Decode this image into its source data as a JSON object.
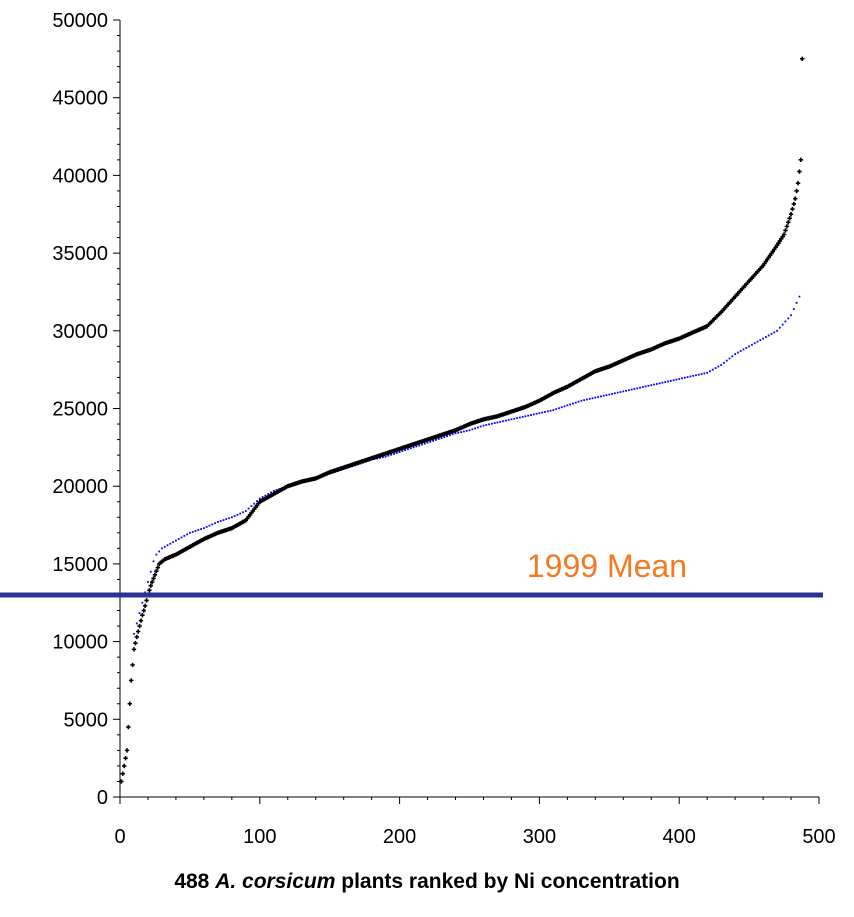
{
  "chart_data": {
    "type": "scatter",
    "xlim": [
      0,
      500
    ],
    "ylim": [
      0,
      50000
    ],
    "x_ticks": [
      "0",
      "100",
      "200",
      "300",
      "400",
      "500"
    ],
    "y_ticks": [
      "0",
      "5000",
      "10000",
      "15000",
      "20000",
      "25000",
      "30000",
      "35000",
      "40000",
      "45000",
      "50000"
    ],
    "xlabel": {
      "prefix": "488 ",
      "species": "A. corsicum",
      "suffix": " plants ranked by Ni concentration"
    },
    "grid": false,
    "series": [
      {
        "color": "#000000",
        "marker": "plus",
        "points": [
          [
            1,
            1000
          ],
          [
            3,
            2000
          ],
          [
            5,
            3000
          ],
          [
            6,
            4500
          ],
          [
            7,
            6000
          ],
          [
            8,
            7500
          ],
          [
            9,
            8500
          ],
          [
            10,
            9500
          ],
          [
            12,
            10300
          ],
          [
            14,
            11000
          ],
          [
            16,
            11700
          ],
          [
            18,
            12300
          ],
          [
            20,
            13000
          ],
          [
            22,
            13600
          ],
          [
            25,
            14300
          ],
          [
            28,
            15000
          ],
          [
            32,
            15300
          ],
          [
            40,
            15600
          ],
          [
            50,
            16100
          ],
          [
            60,
            16600
          ],
          [
            70,
            17000
          ],
          [
            80,
            17300
          ],
          [
            90,
            17800
          ],
          [
            100,
            19000
          ],
          [
            110,
            19500
          ],
          [
            120,
            20000
          ],
          [
            130,
            20300
          ],
          [
            140,
            20500
          ],
          [
            150,
            20900
          ],
          [
            160,
            21200
          ],
          [
            170,
            21500
          ],
          [
            180,
            21800
          ],
          [
            190,
            22100
          ],
          [
            200,
            22400
          ],
          [
            210,
            22700
          ],
          [
            220,
            23000
          ],
          [
            230,
            23300
          ],
          [
            240,
            23600
          ],
          [
            250,
            24000
          ],
          [
            260,
            24300
          ],
          [
            270,
            24500
          ],
          [
            280,
            24800
          ],
          [
            290,
            25100
          ],
          [
            300,
            25500
          ],
          [
            310,
            26000
          ],
          [
            320,
            26400
          ],
          [
            330,
            26900
          ],
          [
            340,
            27400
          ],
          [
            350,
            27700
          ],
          [
            360,
            28100
          ],
          [
            370,
            28500
          ],
          [
            380,
            28800
          ],
          [
            390,
            29200
          ],
          [
            400,
            29500
          ],
          [
            410,
            29900
          ],
          [
            420,
            30300
          ],
          [
            430,
            31200
          ],
          [
            440,
            32200
          ],
          [
            450,
            33200
          ],
          [
            460,
            34200
          ],
          [
            470,
            35500
          ],
          [
            475,
            36200
          ],
          [
            480,
            37500
          ],
          [
            483,
            38500
          ],
          [
            485,
            39500
          ],
          [
            487,
            41000
          ],
          [
            488,
            47500
          ]
        ]
      },
      {
        "color": "#0000ff",
        "marker": "dot",
        "points": [
          [
            10,
            10500
          ],
          [
            13,
            11500
          ],
          [
            16,
            12500
          ],
          [
            19,
            13500
          ],
          [
            22,
            14500
          ],
          [
            25,
            15500
          ],
          [
            30,
            16000
          ],
          [
            40,
            16500
          ],
          [
            50,
            17000
          ],
          [
            60,
            17300
          ],
          [
            70,
            17700
          ],
          [
            80,
            18000
          ],
          [
            90,
            18400
          ],
          [
            100,
            19200
          ],
          [
            110,
            19700
          ],
          [
            120,
            20000
          ],
          [
            130,
            20300
          ],
          [
            140,
            20500
          ],
          [
            150,
            20800
          ],
          [
            160,
            21100
          ],
          [
            170,
            21400
          ],
          [
            180,
            21700
          ],
          [
            190,
            21900
          ],
          [
            200,
            22200
          ],
          [
            210,
            22500
          ],
          [
            220,
            22800
          ],
          [
            230,
            23100
          ],
          [
            240,
            23400
          ],
          [
            250,
            23600
          ],
          [
            260,
            23900
          ],
          [
            270,
            24100
          ],
          [
            280,
            24300
          ],
          [
            290,
            24500
          ],
          [
            300,
            24700
          ],
          [
            310,
            24900
          ],
          [
            320,
            25200
          ],
          [
            330,
            25500
          ],
          [
            340,
            25700
          ],
          [
            350,
            25900
          ],
          [
            360,
            26100
          ],
          [
            370,
            26300
          ],
          [
            380,
            26500
          ],
          [
            390,
            26700
          ],
          [
            400,
            26900
          ],
          [
            410,
            27100
          ],
          [
            420,
            27300
          ],
          [
            430,
            27800
          ],
          [
            440,
            28500
          ],
          [
            450,
            29000
          ],
          [
            460,
            29500
          ],
          [
            470,
            30000
          ],
          [
            480,
            31000
          ],
          [
            486,
            32200
          ]
        ]
      }
    ],
    "mean_line": {
      "y": 13000,
      "label": "1999 Mean",
      "line_color": "#2e3192",
      "label_color": "#f47920"
    }
  }
}
